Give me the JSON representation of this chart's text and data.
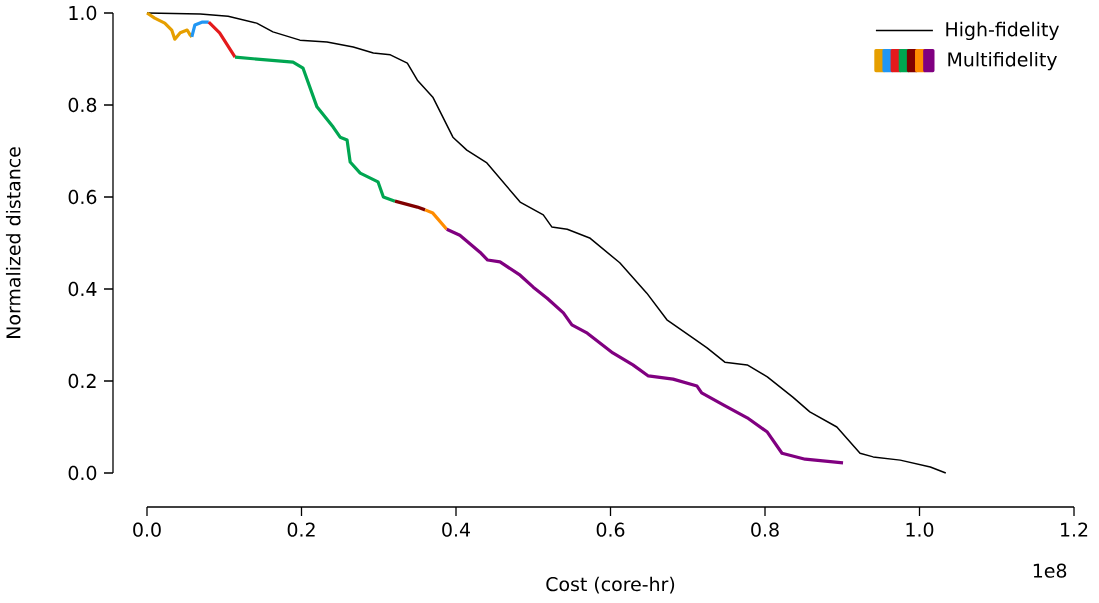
{
  "chart_data": {
    "type": "line",
    "xlabel": "Cost (core-hr)",
    "ylabel": "Normalized distance",
    "annotations": [
      "1e8"
    ],
    "xlim": [
      0,
      1.2
    ],
    "ylim": [
      0,
      1.0
    ],
    "xticks": [
      {
        "value": 0,
        "label": "0.0"
      },
      {
        "value": 0.2,
        "label": "0.2"
      },
      {
        "value": 0.4,
        "label": "0.4"
      },
      {
        "value": 0.6,
        "label": "0.6"
      },
      {
        "value": 0.8,
        "label": "0.8"
      },
      {
        "value": 1.0,
        "label": "1.0"
      },
      {
        "value": 1.2,
        "label": "1.2"
      }
    ],
    "yticks": [
      {
        "value": 0,
        "label": "0.0"
      },
      {
        "value": 0.2,
        "label": "0.2"
      },
      {
        "value": 0.4,
        "label": "0.4"
      },
      {
        "value": 0.6,
        "label": "0.6"
      },
      {
        "value": 0.8,
        "label": "0.8"
      },
      {
        "value": 1.0,
        "label": "1.0"
      }
    ],
    "grid": false,
    "legend": "top right",
    "marker": "none",
    "line_style": "solid",
    "series": [
      {
        "name": "High-fidelity",
        "color": "#000000",
        "x": [
          0,
          0.069,
          0.105,
          0.142,
          0.163,
          0.198,
          0.233,
          0.267,
          0.293,
          0.315,
          0.337,
          0.35,
          0.37,
          0.396,
          0.414,
          0.44,
          0.483,
          0.513,
          0.524,
          0.544,
          0.573,
          0.612,
          0.647,
          0.673,
          0.707,
          0.725,
          0.748,
          0.777,
          0.803,
          0.836,
          0.858,
          0.893,
          0.923,
          0.94,
          0.975,
          1.014,
          1.034
        ],
        "values": [
          1.0,
          0.998,
          0.993,
          0.978,
          0.959,
          0.941,
          0.937,
          0.926,
          0.913,
          0.909,
          0.891,
          0.854,
          0.817,
          0.73,
          0.702,
          0.674,
          0.589,
          0.561,
          0.535,
          0.53,
          0.511,
          0.457,
          0.391,
          0.333,
          0.293,
          0.272,
          0.241,
          0.235,
          0.209,
          0.165,
          0.133,
          0.1,
          0.043,
          0.035,
          0.028,
          0.013,
          0.0
        ]
      },
      {
        "color": "#e69f00",
        "x": [
          0,
          0.01,
          0.023,
          0.032,
          0.036,
          0.043,
          0.052,
          0.056,
          0.058
        ],
        "values": [
          1.0,
          0.989,
          0.978,
          0.963,
          0.943,
          0.957,
          0.963,
          0.952,
          0.948
        ]
      },
      {
        "color": "#2196f3",
        "x": [
          0.058,
          0.062,
          0.071,
          0.08
        ],
        "values": [
          0.948,
          0.974,
          0.98,
          0.98
        ]
      },
      {
        "color": "#e41a1c",
        "x": [
          0.08,
          0.094,
          0.114
        ],
        "values": [
          0.98,
          0.957,
          0.904
        ]
      },
      {
        "color": "#00a651",
        "x": [
          0.114,
          0.189,
          0.202,
          0.22,
          0.241,
          0.25,
          0.259,
          0.263,
          0.276,
          0.299,
          0.306,
          0.321
        ],
        "values": [
          0.904,
          0.893,
          0.88,
          0.796,
          0.752,
          0.73,
          0.724,
          0.676,
          0.652,
          0.633,
          0.6,
          0.591
        ]
      },
      {
        "color": "#800000",
        "x": [
          0.321,
          0.35,
          0.36
        ],
        "values": [
          0.591,
          0.578,
          0.572
        ]
      },
      {
        "color": "#ff8c00",
        "x": [
          0.36,
          0.37,
          0.388
        ],
        "values": [
          0.572,
          0.565,
          0.53
        ]
      },
      {
        "name": "Multifidelity",
        "color": "#800080",
        "x": [
          0.388,
          0.405,
          0.431,
          0.441,
          0.457,
          0.483,
          0.5,
          0.518,
          0.539,
          0.55,
          0.57,
          0.603,
          0.629,
          0.649,
          0.681,
          0.712,
          0.718,
          0.746,
          0.777,
          0.803,
          0.822,
          0.852,
          0.901
        ],
        "values": [
          0.53,
          0.517,
          0.48,
          0.463,
          0.459,
          0.43,
          0.404,
          0.38,
          0.348,
          0.322,
          0.304,
          0.261,
          0.235,
          0.211,
          0.204,
          0.189,
          0.174,
          0.148,
          0.12,
          0.089,
          0.043,
          0.03,
          0.022
        ]
      }
    ]
  }
}
